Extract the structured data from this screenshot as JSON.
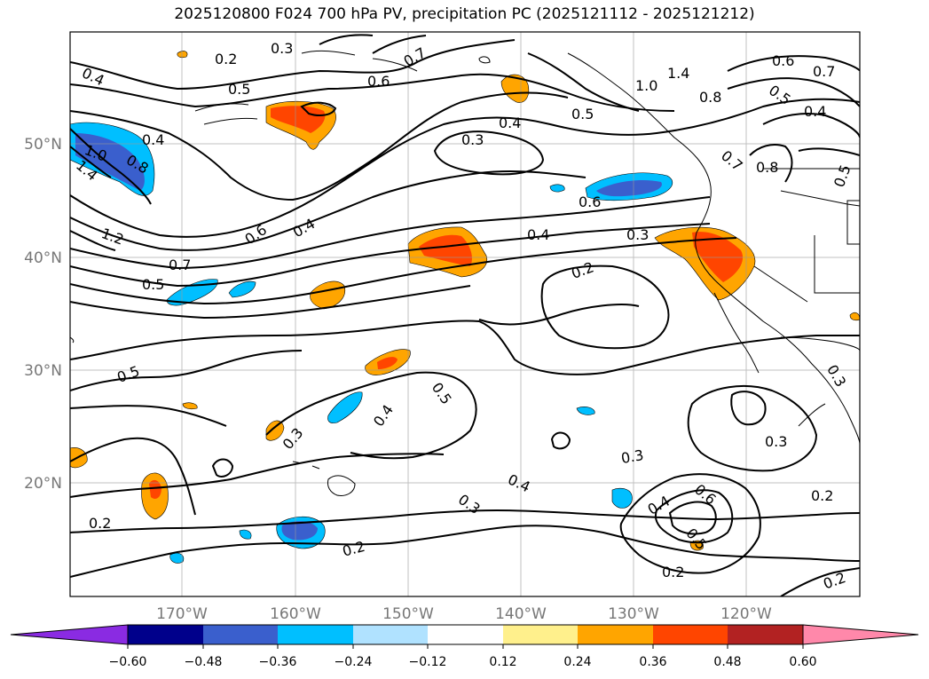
{
  "title": "2025120800 F024 700 hPa PV, precipitation PC (2025121112 - 2025121212)",
  "map": {
    "lon_ticks": [
      "170°W",
      "160°W",
      "150°W",
      "140°W",
      "130°W",
      "120°W"
    ],
    "lat_ticks": [
      "50°N",
      "40°N",
      "30°N",
      "20°N"
    ],
    "contour_labels": [
      {
        "text": "0.4"
      },
      {
        "text": "0.2"
      },
      {
        "text": "0.3"
      },
      {
        "text": "0.5"
      },
      {
        "text": "0.7"
      },
      {
        "text": "0.6"
      },
      {
        "text": "1.4"
      },
      {
        "text": "1.0"
      },
      {
        "text": "0.8"
      },
      {
        "text": "0.7"
      },
      {
        "text": "0.5"
      },
      {
        "text": "0.4"
      },
      {
        "text": "0.5"
      },
      {
        "text": "0.4"
      },
      {
        "text": "0.3"
      },
      {
        "text": "0.4"
      },
      {
        "text": "1.0"
      },
      {
        "text": "0.8"
      },
      {
        "text": "1.4"
      },
      {
        "text": "0.6"
      },
      {
        "text": "1.2"
      },
      {
        "text": "0.7"
      },
      {
        "text": "0.5"
      },
      {
        "text": "0.6"
      },
      {
        "text": "0.4"
      },
      {
        "text": "0.6"
      },
      {
        "text": "0.4"
      },
      {
        "text": "0.3"
      },
      {
        "text": "0.2"
      },
      {
        "text": "0.7"
      },
      {
        "text": "0.8"
      },
      {
        "text": "0.5"
      },
      {
        "text": "0.5"
      },
      {
        "text": "0.5"
      },
      {
        "text": "0.4"
      },
      {
        "text": "0.3"
      },
      {
        "text": "0.3"
      },
      {
        "text": "0.3"
      },
      {
        "text": "0.4"
      },
      {
        "text": "0.3"
      },
      {
        "text": "0.4"
      },
      {
        "text": "0.6"
      },
      {
        "text": "0.5"
      },
      {
        "text": "0.2"
      },
      {
        "text": "0.2"
      },
      {
        "text": "0.2"
      },
      {
        "text": "0.2"
      },
      {
        "text": "0.2"
      },
      {
        "text": "0.3"
      }
    ]
  },
  "colorbar": {
    "ticks": [
      "−0.60",
      "−0.48",
      "−0.36",
      "−0.24",
      "−0.12",
      "0.12",
      "0.24",
      "0.36",
      "0.48",
      "0.60"
    ],
    "colors": [
      "#8a2be2",
      "#00008b",
      "#3a5fcd",
      "#00bfff",
      "#b0e2ff",
      "#ffffff",
      "#fff08c",
      "#ffa500",
      "#ff4500",
      "#b22222",
      "#ff88aa"
    ]
  },
  "shading_colors": {
    "orange": "#ffa500",
    "orangered": "#ff4500",
    "deepskyblue": "#00bfff",
    "royalblue": "#3a5fcd",
    "firebrick": "#b22222"
  }
}
